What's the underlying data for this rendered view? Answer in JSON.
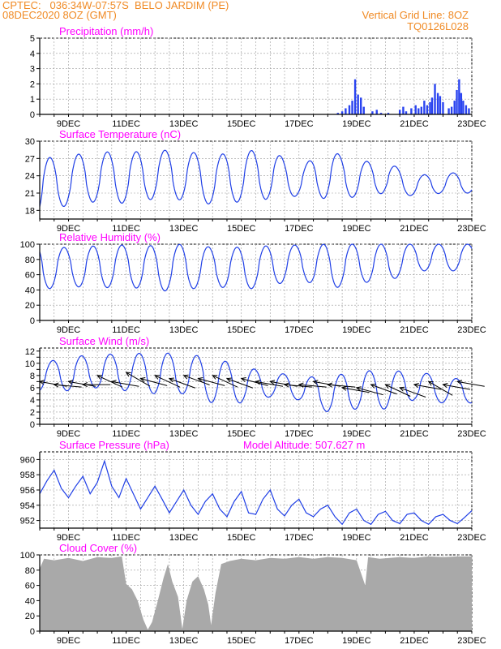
{
  "header": {
    "line1": "CPTEC:   036:34W-07:57S  BELO JARDIM (PE)",
    "line2": "08DEC2020 8OZ (GMT)",
    "grid_note": "Vertical Grid Line: 8OZ",
    "code": "TQ0126L028"
  },
  "colors": {
    "series": "#1f3fe6",
    "bars": "#2a44f0",
    "cloud": "#a9a9a9",
    "title": "#ff00ff",
    "header": "#f08a24"
  },
  "x_axis": {
    "ticks": [
      "9DEC",
      "11DEC",
      "13DEC",
      "15DEC",
      "17DEC",
      "19DEC",
      "21DEC",
      "23DEC"
    ],
    "tick_days": [
      1,
      3,
      5,
      7,
      9,
      11,
      13,
      15
    ],
    "range_days": [
      0,
      15
    ]
  },
  "chart_data": [
    {
      "type": "bar",
      "id": "precip",
      "title": "Precipitation (mm/h)",
      "ylim": [
        0,
        5
      ],
      "yticks": [
        "0",
        "1",
        "2",
        "3",
        "4",
        "5"
      ],
      "bars": [
        {
          "day": 10.35,
          "value": 0.1
        },
        {
          "day": 10.5,
          "value": 0.2
        },
        {
          "day": 10.62,
          "value": 0.4
        },
        {
          "day": 10.75,
          "value": 0.6
        },
        {
          "day": 10.85,
          "value": 0.9
        },
        {
          "day": 10.95,
          "value": 2.3
        },
        {
          "day": 11.05,
          "value": 1.3
        },
        {
          "day": 11.15,
          "value": 1.1
        },
        {
          "day": 11.25,
          "value": 0.5
        },
        {
          "day": 11.55,
          "value": 0.2
        },
        {
          "day": 11.7,
          "value": 0.3
        },
        {
          "day": 11.85,
          "value": 0.1
        },
        {
          "day": 12.1,
          "value": 0.1
        },
        {
          "day": 12.5,
          "value": 0.3
        },
        {
          "day": 12.62,
          "value": 0.5
        },
        {
          "day": 12.72,
          "value": 0.2
        },
        {
          "day": 12.9,
          "value": 0.4
        },
        {
          "day": 13.05,
          "value": 0.6
        },
        {
          "day": 13.15,
          "value": 0.4
        },
        {
          "day": 13.25,
          "value": 0.5
        },
        {
          "day": 13.35,
          "value": 0.9
        },
        {
          "day": 13.45,
          "value": 0.6
        },
        {
          "day": 13.55,
          "value": 0.8
        },
        {
          "day": 13.62,
          "value": 1.1
        },
        {
          "day": 13.72,
          "value": 2.0
        },
        {
          "day": 13.82,
          "value": 1.4
        },
        {
          "day": 13.9,
          "value": 1.2
        },
        {
          "day": 14.0,
          "value": 0.8
        },
        {
          "day": 14.2,
          "value": 0.4
        },
        {
          "day": 14.3,
          "value": 0.5
        },
        {
          "day": 14.4,
          "value": 0.9
        },
        {
          "day": 14.48,
          "value": 1.6
        },
        {
          "day": 14.56,
          "value": 2.3
        },
        {
          "day": 14.63,
          "value": 1.4
        },
        {
          "day": 14.7,
          "value": 0.9
        },
        {
          "day": 14.8,
          "value": 0.6
        },
        {
          "day": 14.9,
          "value": 0.4
        }
      ]
    },
    {
      "type": "line",
      "id": "temp",
      "title": "Surface Temperature (nC)",
      "ylim": [
        16.5,
        30
      ],
      "yticks": [
        "18",
        "21",
        "24",
        "27",
        "30"
      ],
      "daily": [
        {
          "max": 27.0,
          "min": 17.0
        },
        {
          "max": 27.5,
          "min": 19.0
        },
        {
          "max": 28.2,
          "min": 19.5
        },
        {
          "max": 28.0,
          "min": 19.2
        },
        {
          "max": 28.5,
          "min": 20.0
        },
        {
          "max": 28.3,
          "min": 19.8
        },
        {
          "max": 27.5,
          "min": 19.0
        },
        {
          "max": 28.3,
          "min": 19.5
        },
        {
          "max": 28.5,
          "min": 20.0
        },
        {
          "max": 25.5,
          "min": 20.5
        },
        {
          "max": 28.5,
          "min": 20.0
        },
        {
          "max": 26.5,
          "min": 20.3
        },
        {
          "max": 26.5,
          "min": 21.0
        },
        {
          "max": 24.0,
          "min": 20.5
        },
        {
          "max": 24.5,
          "min": 21.0
        }
      ]
    },
    {
      "type": "line",
      "id": "rh",
      "title": "Relative Humidity (%)",
      "ylim": [
        0,
        100
      ],
      "yticks": [
        "0",
        "20",
        "40",
        "60",
        "80",
        "100"
      ],
      "daily": [
        {
          "max": 100,
          "min": 40
        },
        {
          "max": 95,
          "min": 45
        },
        {
          "max": 98,
          "min": 42
        },
        {
          "max": 99,
          "min": 45
        },
        {
          "max": 98,
          "min": 38
        },
        {
          "max": 100,
          "min": 40
        },
        {
          "max": 96,
          "min": 45
        },
        {
          "max": 96,
          "min": 40
        },
        {
          "max": 98,
          "min": 45
        },
        {
          "max": 99,
          "min": 55
        },
        {
          "max": 100,
          "min": 40
        },
        {
          "max": 100,
          "min": 50
        },
        {
          "max": 100,
          "min": 50
        },
        {
          "max": 100,
          "min": 65
        },
        {
          "max": 100,
          "min": 65
        }
      ]
    },
    {
      "type": "line",
      "id": "wind",
      "title": "Surface Wind (m/s)",
      "ylim": [
        0,
        12.5
      ],
      "yticks": [
        "0",
        "1",
        "2",
        "3",
        "4",
        "5",
        "6",
        "7",
        "8",
        "9",
        "10",
        "11",
        "12"
      ],
      "ytick_values": [
        0,
        1,
        2,
        3,
        4,
        5,
        6,
        7,
        8,
        9,
        10,
        11,
        12
      ],
      "ylabels_every": 2,
      "daily": [
        {
          "max": 10.0,
          "min": 5.5
        },
        {
          "max": 11.0,
          "min": 5.5
        },
        {
          "max": 11.5,
          "min": 6.0
        },
        {
          "max": 11.5,
          "min": 5.5
        },
        {
          "max": 11.8,
          "min": 5.0
        },
        {
          "max": 11.5,
          "min": 5.0
        },
        {
          "max": 11.0,
          "min": 3.5
        },
        {
          "max": 9.5,
          "min": 3.5
        },
        {
          "max": 8.5,
          "min": 4.5
        },
        {
          "max": 8.0,
          "min": 4.0
        },
        {
          "max": 7.5,
          "min": 2.0
        },
        {
          "max": 9.0,
          "min": 2.5
        },
        {
          "max": 8.5,
          "min": 2.5
        },
        {
          "max": 9.0,
          "min": 4.0
        },
        {
          "max": 7.5,
          "min": 3.5
        }
      ],
      "arrows": [
        {
          "day": 0.0,
          "speed": 7.0,
          "dir": 100
        },
        {
          "day": 0.5,
          "speed": 6.5,
          "dir": 95
        },
        {
          "day": 1.0,
          "speed": 7.0,
          "dir": 100
        },
        {
          "day": 1.5,
          "speed": 6.5,
          "dir": 90
        },
        {
          "day": 2.0,
          "speed": 8.0,
          "dir": 115
        },
        {
          "day": 2.5,
          "speed": 7.0,
          "dir": 100
        },
        {
          "day": 3.0,
          "speed": 8.5,
          "dir": 120
        },
        {
          "day": 3.5,
          "speed": 7.5,
          "dir": 105
        },
        {
          "day": 4.0,
          "speed": 8.0,
          "dir": 115
        },
        {
          "day": 4.5,
          "speed": 7.5,
          "dir": 110
        },
        {
          "day": 5.0,
          "speed": 8.0,
          "dir": 110
        },
        {
          "day": 5.5,
          "speed": 7.5,
          "dir": 105
        },
        {
          "day": 6.0,
          "speed": 8.0,
          "dir": 115
        },
        {
          "day": 6.5,
          "speed": 7.5,
          "dir": 110
        },
        {
          "day": 7.0,
          "speed": 7.5,
          "dir": 105
        },
        {
          "day": 7.5,
          "speed": 7.0,
          "dir": 100
        },
        {
          "day": 8.0,
          "speed": 7.0,
          "dir": 100
        },
        {
          "day": 8.5,
          "speed": 6.5,
          "dir": 95
        },
        {
          "day": 9.0,
          "speed": 6.5,
          "dir": 95
        },
        {
          "day": 9.5,
          "speed": 7.0,
          "dir": 100
        },
        {
          "day": 10.0,
          "speed": 6.5,
          "dir": 95
        },
        {
          "day": 10.5,
          "speed": 6.0,
          "dir": 100
        },
        {
          "day": 11.0,
          "speed": 6.0,
          "dir": 105
        },
        {
          "day": 11.5,
          "speed": 6.5,
          "dir": 110
        },
        {
          "day": 12.0,
          "speed": 6.5,
          "dir": 115
        },
        {
          "day": 12.5,
          "speed": 6.0,
          "dir": 110
        },
        {
          "day": 13.0,
          "speed": 6.5,
          "dir": 100
        },
        {
          "day": 13.5,
          "speed": 7.0,
          "dir": 120
        },
        {
          "day": 14.0,
          "speed": 6.5,
          "dir": 100
        },
        {
          "day": 14.5,
          "speed": 7.0,
          "dir": 100
        }
      ]
    },
    {
      "type": "line",
      "id": "press",
      "title": "Surface Pressure (hPa)",
      "annotation": "Model Altitude: 507.627 m",
      "ylim": [
        951,
        961
      ],
      "yticks": [
        "952",
        "954",
        "956",
        "958",
        "960"
      ],
      "points": [
        {
          "day": 0.0,
          "value": 955.5
        },
        {
          "day": 0.25,
          "value": 957.2
        },
        {
          "day": 0.5,
          "value": 958.6
        },
        {
          "day": 0.75,
          "value": 956.2
        },
        {
          "day": 1.0,
          "value": 955.0
        },
        {
          "day": 1.25,
          "value": 956.5
        },
        {
          "day": 1.5,
          "value": 957.8
        },
        {
          "day": 1.75,
          "value": 955.5
        },
        {
          "day": 2.0,
          "value": 957.0
        },
        {
          "day": 2.25,
          "value": 959.8
        },
        {
          "day": 2.5,
          "value": 956.5
        },
        {
          "day": 2.75,
          "value": 955.0
        },
        {
          "day": 3.0,
          "value": 957.5
        },
        {
          "day": 3.25,
          "value": 955.5
        },
        {
          "day": 3.5,
          "value": 953.5
        },
        {
          "day": 3.75,
          "value": 955.0
        },
        {
          "day": 4.0,
          "value": 956.5
        },
        {
          "day": 4.25,
          "value": 954.8
        },
        {
          "day": 4.5,
          "value": 953.0
        },
        {
          "day": 4.75,
          "value": 954.5
        },
        {
          "day": 5.0,
          "value": 956.0
        },
        {
          "day": 5.25,
          "value": 954.0
        },
        {
          "day": 5.5,
          "value": 952.8
        },
        {
          "day": 5.75,
          "value": 954.5
        },
        {
          "day": 6.0,
          "value": 955.5
        },
        {
          "day": 6.25,
          "value": 953.5
        },
        {
          "day": 6.5,
          "value": 952.5
        },
        {
          "day": 6.75,
          "value": 954.5
        },
        {
          "day": 7.0,
          "value": 955.8
        },
        {
          "day": 7.25,
          "value": 953.0
        },
        {
          "day": 7.5,
          "value": 952.8
        },
        {
          "day": 7.75,
          "value": 954.8
        },
        {
          "day": 8.0,
          "value": 956.0
        },
        {
          "day": 8.25,
          "value": 953.5
        },
        {
          "day": 8.5,
          "value": 952.6
        },
        {
          "day": 8.75,
          "value": 954.0
        },
        {
          "day": 9.0,
          "value": 954.8
        },
        {
          "day": 9.25,
          "value": 953.0
        },
        {
          "day": 9.5,
          "value": 952.5
        },
        {
          "day": 9.75,
          "value": 953.5
        },
        {
          "day": 10.0,
          "value": 954.0
        },
        {
          "day": 10.25,
          "value": 952.5
        },
        {
          "day": 10.5,
          "value": 951.5
        },
        {
          "day": 10.75,
          "value": 953.0
        },
        {
          "day": 11.0,
          "value": 953.5
        },
        {
          "day": 11.25,
          "value": 952.0
        },
        {
          "day": 11.5,
          "value": 951.5
        },
        {
          "day": 11.75,
          "value": 952.8
        },
        {
          "day": 12.0,
          "value": 953.2
        },
        {
          "day": 12.25,
          "value": 952.0
        },
        {
          "day": 12.5,
          "value": 951.6
        },
        {
          "day": 12.75,
          "value": 952.8
        },
        {
          "day": 13.0,
          "value": 953.0
        },
        {
          "day": 13.25,
          "value": 952.0
        },
        {
          "day": 13.5,
          "value": 951.5
        },
        {
          "day": 13.75,
          "value": 952.5
        },
        {
          "day": 14.0,
          "value": 952.8
        },
        {
          "day": 14.25,
          "value": 952.0
        },
        {
          "day": 14.5,
          "value": 951.6
        },
        {
          "day": 14.75,
          "value": 952.4
        },
        {
          "day": 15.0,
          "value": 953.3
        }
      ]
    },
    {
      "type": "area",
      "id": "cloud",
      "title": "Cloud Cover (%)",
      "ylim": [
        0,
        100
      ],
      "yticks": [
        "0",
        "20",
        "40",
        "60",
        "80",
        "100"
      ],
      "points": [
        {
          "day": 0.0,
          "value": 82
        },
        {
          "day": 0.15,
          "value": 95
        },
        {
          "day": 0.5,
          "value": 93
        },
        {
          "day": 1.0,
          "value": 96
        },
        {
          "day": 1.5,
          "value": 92
        },
        {
          "day": 2.0,
          "value": 97
        },
        {
          "day": 2.5,
          "value": 96
        },
        {
          "day": 2.85,
          "value": 98
        },
        {
          "day": 3.0,
          "value": 62
        },
        {
          "day": 3.2,
          "value": 55
        },
        {
          "day": 3.4,
          "value": 40
        },
        {
          "day": 3.6,
          "value": 15
        },
        {
          "day": 3.75,
          "value": 2
        },
        {
          "day": 3.9,
          "value": 12
        },
        {
          "day": 4.1,
          "value": 40
        },
        {
          "day": 4.3,
          "value": 70
        },
        {
          "day": 4.45,
          "value": 88
        },
        {
          "day": 4.6,
          "value": 65
        },
        {
          "day": 4.8,
          "value": 45
        },
        {
          "day": 4.95,
          "value": 3
        },
        {
          "day": 5.1,
          "value": 40
        },
        {
          "day": 5.3,
          "value": 65
        },
        {
          "day": 5.5,
          "value": 72
        },
        {
          "day": 5.7,
          "value": 55
        },
        {
          "day": 5.85,
          "value": 35
        },
        {
          "day": 5.95,
          "value": 8
        },
        {
          "day": 6.1,
          "value": 50
        },
        {
          "day": 6.3,
          "value": 88
        },
        {
          "day": 6.6,
          "value": 92
        },
        {
          "day": 7.0,
          "value": 95
        },
        {
          "day": 7.5,
          "value": 93
        },
        {
          "day": 8.0,
          "value": 96
        },
        {
          "day": 8.5,
          "value": 95
        },
        {
          "day": 9.0,
          "value": 97
        },
        {
          "day": 9.5,
          "value": 95
        },
        {
          "day": 10.0,
          "value": 97
        },
        {
          "day": 10.5,
          "value": 96
        },
        {
          "day": 11.0,
          "value": 93
        },
        {
          "day": 11.3,
          "value": 60
        },
        {
          "day": 11.4,
          "value": 97
        },
        {
          "day": 11.8,
          "value": 95
        },
        {
          "day": 12.5,
          "value": 97
        },
        {
          "day": 13.0,
          "value": 96
        },
        {
          "day": 13.5,
          "value": 98
        },
        {
          "day": 14.0,
          "value": 97
        },
        {
          "day": 14.5,
          "value": 98
        },
        {
          "day": 15.0,
          "value": 98
        }
      ]
    }
  ]
}
